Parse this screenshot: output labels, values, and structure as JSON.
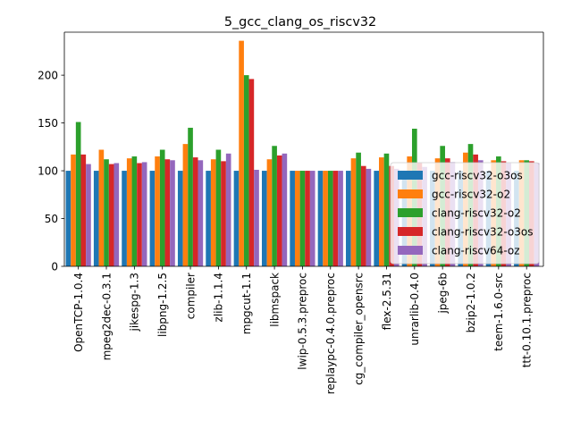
{
  "chart_data": {
    "type": "bar",
    "title": "5_gcc_clang_os_riscv32",
    "xlabel": "",
    "ylabel": "",
    "ylim": [
      0,
      245
    ],
    "yticks": [
      0,
      50,
      100,
      150,
      200
    ],
    "legend_position": "center-right",
    "grid": false,
    "categories": [
      "OpenTCP-1.0.4",
      "mpeg2dec-0.3.1",
      "jikespg-1.3",
      "libpng-1.2.5",
      "compiler",
      "zlib-1.1.4",
      "mpgcut-1.1",
      "libmspack",
      "lwip-0.5.3.preproc",
      "replaypc-0.4.0.preproc",
      "cg_compiler_opensrc",
      "flex-2.5.31",
      "unrarlib-0.4.0",
      "jpeg-6b",
      "bzip2-1.0.2",
      "teem-1.6.0-src",
      "ttt-0.10.1.preproc"
    ],
    "series": [
      {
        "name": "gcc-riscv32-o3os",
        "color": "#1f77b4",
        "values": [
          100,
          100,
          100,
          100,
          100,
          100,
          100,
          100,
          100,
          100,
          100,
          100,
          100,
          100,
          100,
          100,
          100
        ]
      },
      {
        "name": "gcc-riscv32-o2",
        "color": "#ff7f0e",
        "values": [
          117,
          122,
          113,
          115,
          128,
          112,
          236,
          112,
          100,
          100,
          113,
          114,
          115,
          113,
          119,
          111,
          111
        ]
      },
      {
        "name": "clang-riscv32-o2",
        "color": "#2ca02c",
        "values": [
          151,
          112,
          115,
          122,
          145,
          122,
          200,
          126,
          100,
          100,
          119,
          118,
          144,
          126,
          128,
          115,
          111
        ]
      },
      {
        "name": "clang-riscv32-o3os",
        "color": "#d62728",
        "values": [
          117,
          107,
          108,
          112,
          114,
          110,
          196,
          116,
          100,
          100,
          105,
          105,
          108,
          113,
          117,
          110,
          110
        ]
      },
      {
        "name": "clang-riscv64-oz",
        "color": "#9467bd",
        "values": [
          107,
          108,
          109,
          111,
          111,
          118,
          101,
          118,
          100,
          100,
          102,
          102,
          104,
          109,
          111,
          108,
          108
        ]
      }
    ]
  }
}
